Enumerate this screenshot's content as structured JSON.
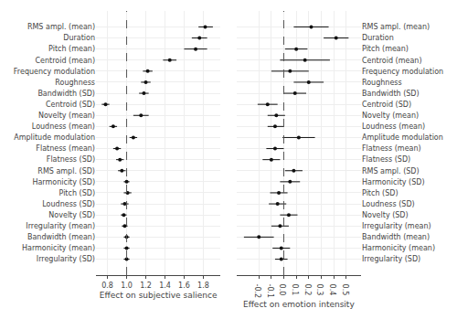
{
  "chart_data": [
    {
      "type": "forest",
      "categories": [
        "RMS ampl. (mean)",
        "Duration",
        "Pitch (mean)",
        "Centroid (mean)",
        "Frequency modulation",
        "Roughness",
        "Bandwidth (SD)",
        "Centroid (SD)",
        "Novelty (mean)",
        "Loudness (mean)",
        "Amplitude modulation",
        "Flatness (mean)",
        "Flatness (SD)",
        "RMS ampl. (SD)",
        "Harmonicity (SD)",
        "Pitch (SD)",
        "Loudness (SD)",
        "Novelty (SD)",
        "Irregularity (mean)",
        "Bandwidth (mean)",
        "Harmonicity (mean)",
        "Irregularity (SD)"
      ],
      "values": [
        1.82,
        1.76,
        1.72,
        1.45,
        1.22,
        1.2,
        1.18,
        0.78,
        1.15,
        0.86,
        1.07,
        0.9,
        0.93,
        0.95,
        1.0,
        1.01,
        0.98,
        0.97,
        0.98,
        1.0,
        1.0,
        1.0
      ],
      "ci_low": [
        1.75,
        1.68,
        1.6,
        1.38,
        1.17,
        1.15,
        1.13,
        0.74,
        1.07,
        0.82,
        1.03,
        0.86,
        0.89,
        0.91,
        0.97,
        0.97,
        0.94,
        0.94,
        0.95,
        0.97,
        0.97,
        0.97
      ],
      "ci_high": [
        1.9,
        1.84,
        1.84,
        1.52,
        1.27,
        1.25,
        1.23,
        0.82,
        1.23,
        0.9,
        1.11,
        0.94,
        0.97,
        0.99,
        1.03,
        1.05,
        1.02,
        1.0,
        1.01,
        1.03,
        1.03,
        1.03
      ],
      "xlabel": "Effect on subjective salience",
      "xlim": [
        0.68,
        1.98
      ],
      "xticks": [
        0.8,
        {
          "value": 1.0,
          "label": "1.0"
        },
        1.2,
        1.4,
        1.6,
        1.8
      ],
      "reference_line": 1.0,
      "color": "#111111",
      "grid": true
    },
    {
      "type": "forest",
      "categories": [
        "RMS ampl. (mean)",
        "Duration",
        "Pitch (mean)",
        "Centroid (mean)",
        "Frequency modulation",
        "Roughness",
        "Bandwidth (SD)",
        "Centroid (SD)",
        "Novelty (mean)",
        "Loudness (mean)",
        "Amplitude modulation",
        "Flatness (mean)",
        "Flatness (SD)",
        "RMS ampl. (SD)",
        "Harmonicity (SD)",
        "Pitch (SD)",
        "Loudness (SD)",
        "Novelty (SD)",
        "Irregularity (mean)",
        "Bandwidth (mean)",
        "Harmonicity (mean)",
        "Irregularity (SD)"
      ],
      "values": [
        0.22,
        0.42,
        0.1,
        0.17,
        0.05,
        0.2,
        0.09,
        -0.13,
        -0.06,
        -0.07,
        0.12,
        -0.07,
        -0.1,
        0.08,
        0.05,
        -0.04,
        -0.05,
        0.04,
        -0.03,
        -0.2,
        -0.02,
        -0.02
      ],
      "ci_low": [
        0.08,
        0.32,
        0.01,
        -0.03,
        -0.1,
        0.08,
        0.0,
        -0.21,
        -0.13,
        -0.13,
        -0.01,
        -0.14,
        -0.17,
        0.01,
        -0.03,
        -0.11,
        -0.12,
        -0.03,
        -0.1,
        -0.32,
        -0.09,
        -0.07
      ],
      "ci_high": [
        0.36,
        0.52,
        0.19,
        0.37,
        0.2,
        0.32,
        0.18,
        -0.05,
        0.01,
        0.0,
        0.25,
        0.0,
        -0.03,
        0.15,
        0.13,
        0.03,
        0.02,
        0.11,
        0.04,
        -0.08,
        0.05,
        0.03
      ],
      "xlabel": "Effect on emotion intensity",
      "xlim": [
        -0.38,
        0.62
      ],
      "xticks": [
        -0.2,
        -0.1,
        {
          "value": 0.0,
          "label": "0.0"
        },
        0.1,
        0.2,
        0.3,
        0.4,
        0.5
      ],
      "reference_line": 0.0,
      "color": "#111111",
      "grid": true
    }
  ]
}
